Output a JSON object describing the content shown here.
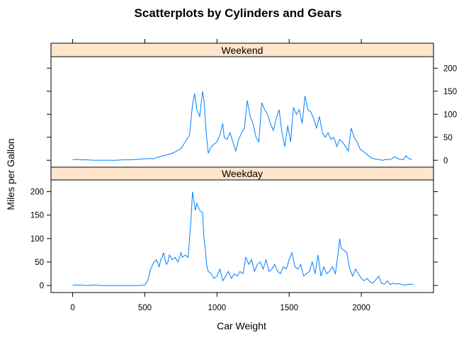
{
  "chart_data": {
    "type": "line",
    "title": "Scatterplots by Cylinders and Gears",
    "xlabel": "Car Weight",
    "ylabel": "Miles per Gallon",
    "xlim": [
      -150,
      2500
    ],
    "ylim": [
      -15,
      225
    ],
    "x_ticks": [
      0,
      500,
      1000,
      1500,
      2000
    ],
    "y_ticks": [
      0,
      50,
      100,
      150,
      200
    ],
    "colors": {
      "line": "#0080ff",
      "strip": "#ffe5cc",
      "frame": "#000000"
    },
    "panels": [
      {
        "name": "Weekend",
        "y_axis_side": "right",
        "points": [
          [
            0,
            1
          ],
          [
            30,
            2
          ],
          [
            60,
            1
          ],
          [
            100,
            1
          ],
          [
            150,
            0
          ],
          [
            200,
            0
          ],
          [
            250,
            0
          ],
          [
            300,
            0
          ],
          [
            350,
            1
          ],
          [
            400,
            1
          ],
          [
            450,
            2
          ],
          [
            500,
            3
          ],
          [
            530,
            4
          ],
          [
            560,
            3
          ],
          [
            600,
            8
          ],
          [
            630,
            10
          ],
          [
            660,
            12
          ],
          [
            690,
            15
          ],
          [
            720,
            20
          ],
          [
            750,
            25
          ],
          [
            770,
            35
          ],
          [
            790,
            45
          ],
          [
            810,
            55
          ],
          [
            830,
            120
          ],
          [
            845,
            145
          ],
          [
            860,
            110
          ],
          [
            880,
            95
          ],
          [
            900,
            150
          ],
          [
            910,
            130
          ],
          [
            925,
            60
          ],
          [
            940,
            15
          ],
          [
            960,
            30
          ],
          [
            980,
            35
          ],
          [
            1000,
            40
          ],
          [
            1020,
            55
          ],
          [
            1040,
            80
          ],
          [
            1050,
            50
          ],
          [
            1070,
            45
          ],
          [
            1090,
            60
          ],
          [
            1110,
            40
          ],
          [
            1130,
            20
          ],
          [
            1150,
            45
          ],
          [
            1170,
            60
          ],
          [
            1190,
            70
          ],
          [
            1210,
            130
          ],
          [
            1230,
            95
          ],
          [
            1250,
            80
          ],
          [
            1270,
            50
          ],
          [
            1290,
            40
          ],
          [
            1310,
            125
          ],
          [
            1330,
            110
          ],
          [
            1350,
            100
          ],
          [
            1370,
            80
          ],
          [
            1390,
            65
          ],
          [
            1410,
            90
          ],
          [
            1430,
            110
          ],
          [
            1450,
            60
          ],
          [
            1470,
            30
          ],
          [
            1490,
            75
          ],
          [
            1510,
            40
          ],
          [
            1530,
            115
          ],
          [
            1550,
            100
          ],
          [
            1570,
            110
          ],
          [
            1590,
            80
          ],
          [
            1610,
            140
          ],
          [
            1630,
            110
          ],
          [
            1650,
            105
          ],
          [
            1670,
            90
          ],
          [
            1690,
            70
          ],
          [
            1710,
            95
          ],
          [
            1730,
            60
          ],
          [
            1750,
            50
          ],
          [
            1770,
            60
          ],
          [
            1790,
            45
          ],
          [
            1810,
            50
          ],
          [
            1830,
            30
          ],
          [
            1850,
            45
          ],
          [
            1870,
            40
          ],
          [
            1890,
            30
          ],
          [
            1910,
            20
          ],
          [
            1930,
            70
          ],
          [
            1950,
            50
          ],
          [
            1970,
            40
          ],
          [
            1990,
            25
          ],
          [
            2010,
            20
          ],
          [
            2030,
            15
          ],
          [
            2050,
            10
          ],
          [
            2070,
            5
          ],
          [
            2090,
            3
          ],
          [
            2110,
            2
          ],
          [
            2130,
            1
          ],
          [
            2150,
            0
          ],
          [
            2170,
            2
          ],
          [
            2190,
            1
          ],
          [
            2210,
            3
          ],
          [
            2230,
            8
          ],
          [
            2250,
            4
          ],
          [
            2270,
            2
          ],
          [
            2290,
            1
          ],
          [
            2310,
            10
          ],
          [
            2330,
            3
          ],
          [
            2350,
            2
          ]
        ]
      },
      {
        "name": "Weekday",
        "y_axis_side": "left",
        "points": [
          [
            0,
            1
          ],
          [
            50,
            1
          ],
          [
            100,
            0
          ],
          [
            150,
            1
          ],
          [
            200,
            0
          ],
          [
            250,
            0
          ],
          [
            300,
            0
          ],
          [
            350,
            0
          ],
          [
            400,
            0
          ],
          [
            450,
            0
          ],
          [
            500,
            1
          ],
          [
            520,
            10
          ],
          [
            540,
            35
          ],
          [
            560,
            48
          ],
          [
            580,
            55
          ],
          [
            600,
            40
          ],
          [
            610,
            55
          ],
          [
            620,
            60
          ],
          [
            630,
            70
          ],
          [
            640,
            55
          ],
          [
            650,
            45
          ],
          [
            660,
            50
          ],
          [
            670,
            65
          ],
          [
            690,
            55
          ],
          [
            710,
            60
          ],
          [
            730,
            50
          ],
          [
            750,
            70
          ],
          [
            760,
            60
          ],
          [
            780,
            65
          ],
          [
            800,
            60
          ],
          [
            810,
            100
          ],
          [
            820,
            140
          ],
          [
            830,
            200
          ],
          [
            840,
            180
          ],
          [
            850,
            160
          ],
          [
            860,
            175
          ],
          [
            880,
            160
          ],
          [
            900,
            155
          ],
          [
            910,
            100
          ],
          [
            920,
            75
          ],
          [
            930,
            40
          ],
          [
            940,
            30
          ],
          [
            960,
            25
          ],
          [
            980,
            15
          ],
          [
            1000,
            20
          ],
          [
            1020,
            35
          ],
          [
            1040,
            10
          ],
          [
            1060,
            20
          ],
          [
            1080,
            30
          ],
          [
            1100,
            15
          ],
          [
            1120,
            25
          ],
          [
            1140,
            20
          ],
          [
            1160,
            30
          ],
          [
            1180,
            25
          ],
          [
            1200,
            60
          ],
          [
            1220,
            45
          ],
          [
            1240,
            55
          ],
          [
            1260,
            30
          ],
          [
            1280,
            45
          ],
          [
            1300,
            50
          ],
          [
            1320,
            35
          ],
          [
            1340,
            55
          ],
          [
            1360,
            30
          ],
          [
            1380,
            35
          ],
          [
            1400,
            45
          ],
          [
            1420,
            30
          ],
          [
            1440,
            25
          ],
          [
            1460,
            40
          ],
          [
            1480,
            35
          ],
          [
            1500,
            55
          ],
          [
            1520,
            70
          ],
          [
            1540,
            40
          ],
          [
            1560,
            35
          ],
          [
            1580,
            45
          ],
          [
            1600,
            20
          ],
          [
            1620,
            25
          ],
          [
            1640,
            30
          ],
          [
            1660,
            50
          ],
          [
            1680,
            25
          ],
          [
            1700,
            65
          ],
          [
            1720,
            20
          ],
          [
            1740,
            40
          ],
          [
            1760,
            25
          ],
          [
            1780,
            30
          ],
          [
            1800,
            40
          ],
          [
            1820,
            25
          ],
          [
            1840,
            70
          ],
          [
            1850,
            100
          ],
          [
            1860,
            80
          ],
          [
            1880,
            75
          ],
          [
            1900,
            70
          ],
          [
            1920,
            35
          ],
          [
            1940,
            20
          ],
          [
            1960,
            35
          ],
          [
            1980,
            25
          ],
          [
            2000,
            15
          ],
          [
            2020,
            10
          ],
          [
            2040,
            15
          ],
          [
            2060,
            8
          ],
          [
            2080,
            5
          ],
          [
            2100,
            12
          ],
          [
            2120,
            20
          ],
          [
            2140,
            5
          ],
          [
            2160,
            3
          ],
          [
            2180,
            10
          ],
          [
            2200,
            2
          ],
          [
            2220,
            5
          ],
          [
            2240,
            3
          ],
          [
            2260,
            4
          ],
          [
            2280,
            2
          ],
          [
            2300,
            1
          ],
          [
            2320,
            2
          ],
          [
            2340,
            3
          ],
          [
            2360,
            2
          ]
        ]
      }
    ]
  }
}
